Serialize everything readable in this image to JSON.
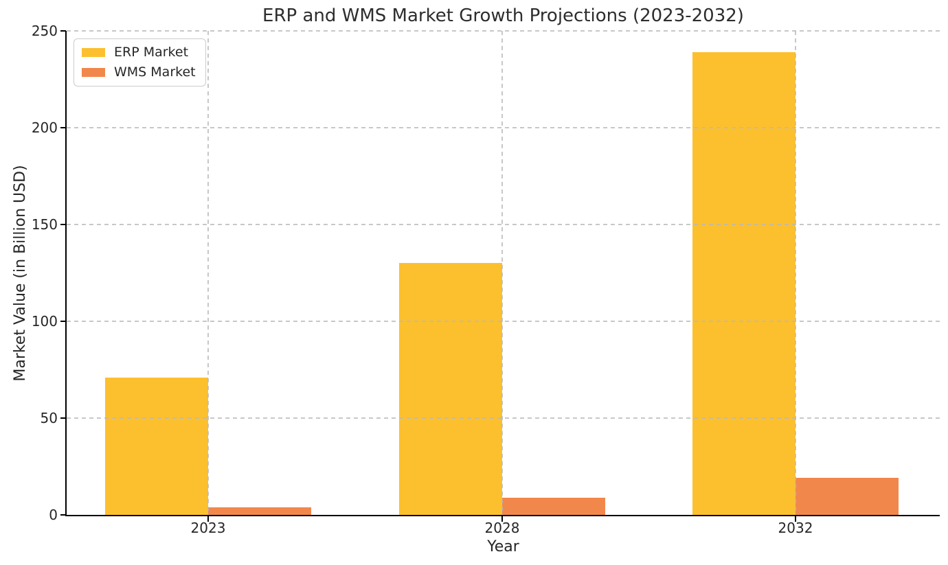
{
  "chart_data": {
    "type": "bar",
    "title": "ERP and WMS Market Growth Projections (2023-2032)",
    "xlabel": "Year",
    "ylabel": "Market Value (in Billion USD)",
    "categories": [
      "2023",
      "2028",
      "2032"
    ],
    "series": [
      {
        "name": "ERP Market",
        "color": "#FCC02F",
        "values": [
          71,
          130,
          239
        ]
      },
      {
        "name": "WMS Market",
        "color": "#F2874B",
        "values": [
          4,
          9,
          19
        ]
      }
    ],
    "ylim": [
      0,
      250
    ],
    "yticks": [
      0,
      50,
      100,
      150,
      200,
      250
    ],
    "grid": true,
    "grid_style": "dashed",
    "grid_color": "#b9b9b9",
    "axis_color": "#000000",
    "background_color": "#ffffff",
    "legend_position": "upper left"
  }
}
